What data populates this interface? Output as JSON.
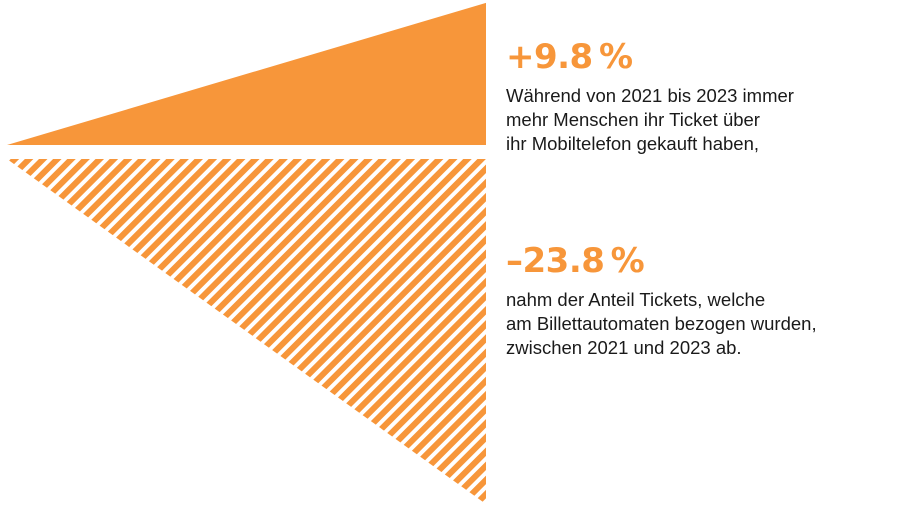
{
  "colors": {
    "accent": "#F7963A",
    "text": "#1a1a1a",
    "background": "#ffffff"
  },
  "chart_data": {
    "type": "bar",
    "categories": [
      "Mobiltelefon",
      "Billettautomaten"
    ],
    "values": [
      9.8,
      -23.8
    ],
    "unit": "%",
    "period": [
      "2021",
      "2023"
    ],
    "stats": [
      {
        "value_label": "+9.8 %",
        "value": 9.8,
        "fill": "solid",
        "lines": [
          "Während von 2021 bis 2023 immer",
          "mehr Menschen ihr Ticket über",
          "ihr Mobiltelefon gekauft haben,"
        ]
      },
      {
        "value_label": "–23.8 %",
        "value": -23.8,
        "fill": "hatched",
        "lines": [
          "nahm der Anteil Tickets, welche",
          "am Billettautomaten bezogen wurden,",
          "zwischen 2021 und 2023 ab."
        ]
      }
    ]
  }
}
